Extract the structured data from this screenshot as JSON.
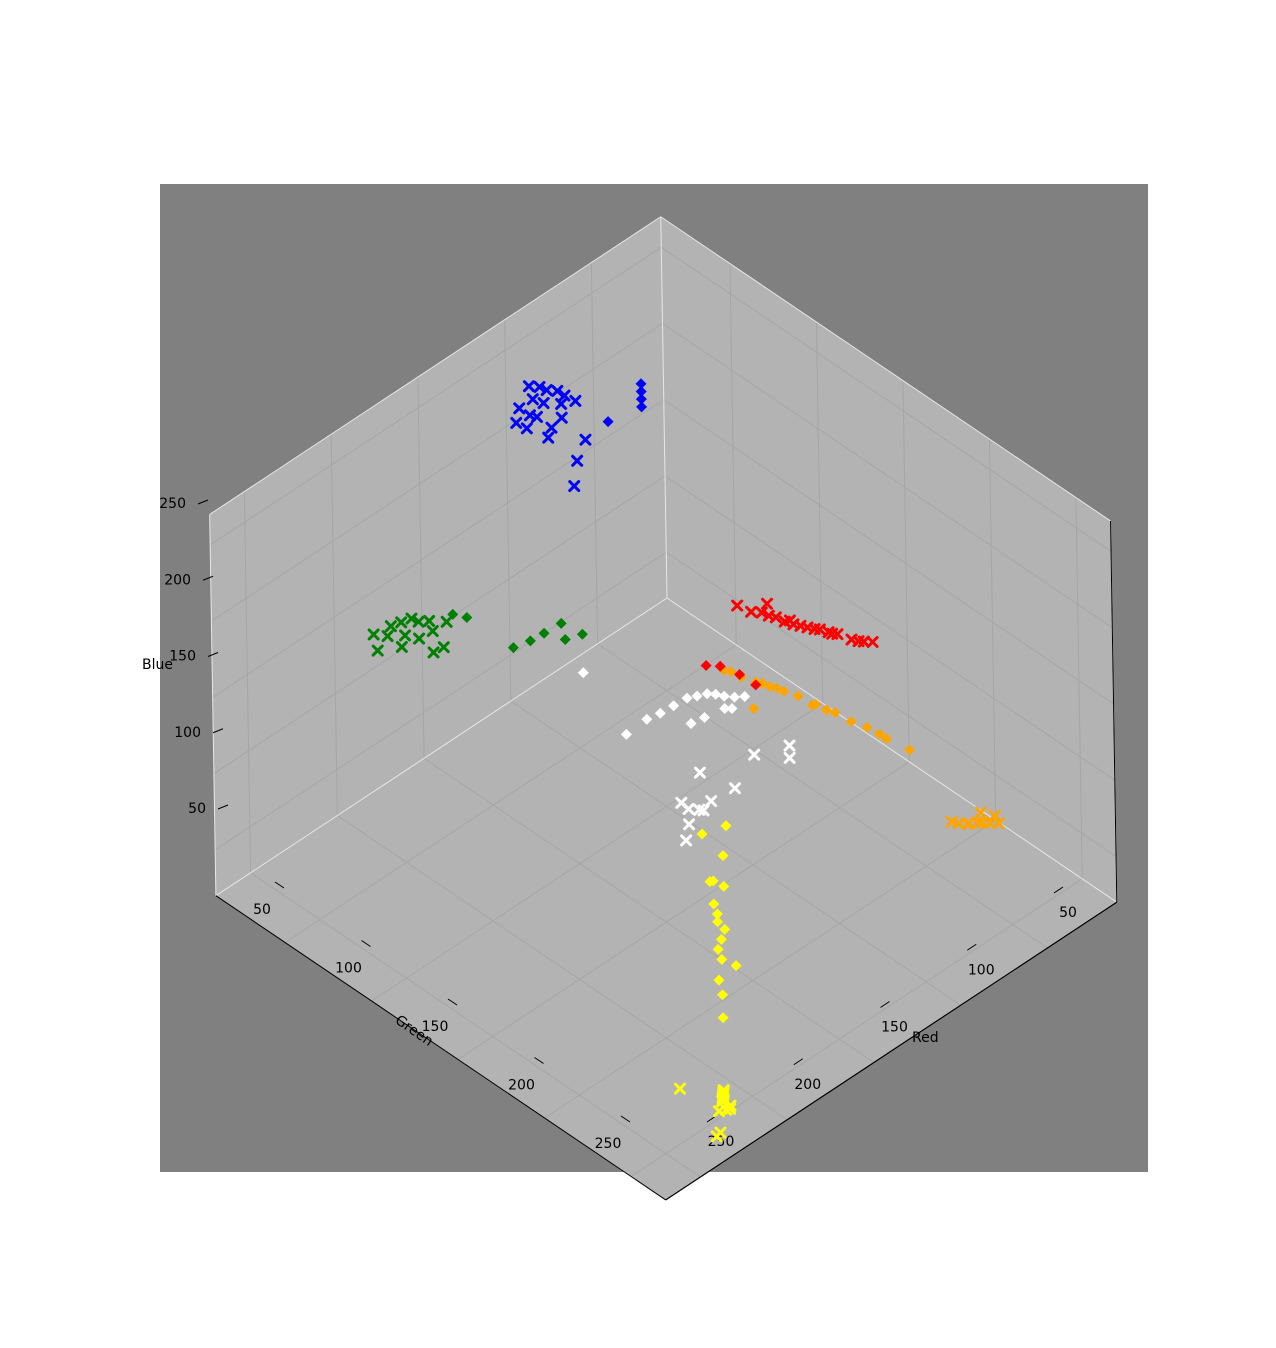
{
  "chart_data": {
    "type": "scatter3d",
    "title": "",
    "xlabel": "Red",
    "ylabel": "Green",
    "zlabel": "Blue",
    "x_ticks": [
      50,
      100,
      150,
      200,
      250
    ],
    "y_ticks": [
      50,
      100,
      150,
      200,
      250
    ],
    "z_ticks": [
      50,
      100,
      150,
      200,
      250
    ],
    "xlim": [
      10,
      270
    ],
    "ylim": [
      10,
      270
    ],
    "zlim": [
      20,
      270
    ],
    "grid": true,
    "legend": "none",
    "colors": {
      "figure_bg": "#ffffff",
      "axes_bg": "#808080",
      "pane": "#b3b3b3",
      "grid": "#a6a6a6"
    },
    "series": [
      {
        "color": "#ff0000",
        "marker": "x",
        "points": [
          [
            35,
            160,
            125
          ],
          [
            38,
            158,
            126
          ],
          [
            42,
            155,
            128
          ],
          [
            45,
            150,
            130
          ],
          [
            48,
            148,
            132
          ],
          [
            50,
            145,
            133
          ],
          [
            54,
            142,
            135
          ],
          [
            58,
            138,
            137
          ],
          [
            60,
            135,
            138
          ],
          [
            62,
            132,
            140
          ],
          [
            58,
            136,
            138
          ],
          [
            40,
            157,
            127
          ],
          [
            47,
            149,
            131
          ],
          [
            56,
            140,
            136
          ],
          [
            64,
            130,
            141
          ],
          [
            66,
            128,
            143
          ],
          [
            70,
            126,
            145
          ],
          [
            72,
            120,
            146
          ],
          [
            60,
            125,
            142
          ],
          [
            52,
            144,
            134
          ]
        ]
      },
      {
        "color": "#ffa500",
        "marker": "x",
        "points": [
          [
            45,
            240,
            75
          ],
          [
            48,
            238,
            76
          ],
          [
            50,
            236,
            76
          ],
          [
            52,
            235,
            77
          ],
          [
            55,
            233,
            77
          ],
          [
            58,
            230,
            77
          ],
          [
            46,
            239,
            80
          ],
          [
            50,
            235,
            82
          ],
          [
            60,
            228,
            78
          ],
          [
            55,
            232,
            76
          ]
        ]
      },
      {
        "color": "#ffa500",
        "marker": "d",
        "points": [
          [
            55,
            200,
            100
          ],
          [
            60,
            192,
            105
          ],
          [
            64,
            185,
            110
          ],
          [
            68,
            180,
            113
          ],
          [
            72,
            175,
            118
          ],
          [
            76,
            168,
            121
          ],
          [
            80,
            162,
            125
          ],
          [
            84,
            158,
            128
          ],
          [
            88,
            154,
            131
          ],
          [
            92,
            150,
            134
          ],
          [
            96,
            146,
            137
          ],
          [
            100,
            140,
            140
          ],
          [
            62,
            190,
            108
          ],
          [
            74,
            172,
            119
          ],
          [
            90,
            152,
            133
          ],
          [
            94,
            150,
            118
          ],
          [
            78,
            168,
            122
          ],
          [
            86,
            156,
            130
          ],
          [
            98,
            142,
            139
          ]
        ]
      },
      {
        "color": "#ff0000",
        "marker": "d",
        "points": [
          [
            100,
            138,
            141
          ],
          [
            105,
            135,
            143
          ],
          [
            96,
            145,
            138
          ],
          [
            92,
            150,
            132
          ]
        ]
      },
      {
        "color": "#0000ff",
        "marker": "x",
        "points": [
          [
            90,
            50,
            240
          ],
          [
            94,
            48,
            245
          ],
          [
            100,
            44,
            250
          ],
          [
            96,
            46,
            248
          ],
          [
            102,
            42,
            252
          ],
          [
            106,
            40,
            254
          ],
          [
            98,
            50,
            244
          ],
          [
            104,
            46,
            246
          ],
          [
            110,
            48,
            243
          ],
          [
            108,
            44,
            250
          ],
          [
            112,
            46,
            244
          ],
          [
            114,
            42,
            247
          ],
          [
            100,
            52,
            238
          ],
          [
            106,
            52,
            236
          ],
          [
            116,
            48,
            240
          ],
          [
            118,
            44,
            242
          ],
          [
            110,
            54,
            234
          ],
          [
            95,
            60,
            226
          ],
          [
            104,
            64,
            222
          ],
          [
            112,
            70,
            216
          ]
        ]
      },
      {
        "color": "#0000ff",
        "marker": "d",
        "points": [
          [
            48,
            44,
            205
          ],
          [
            46,
            42,
            207
          ],
          [
            44,
            40,
            209
          ],
          [
            50,
            46,
            203
          ],
          [
            80,
            58,
            225
          ]
        ]
      },
      {
        "color": "#008000",
        "marker": "x",
        "points": [
          [
            160,
            40,
            140
          ],
          [
            166,
            36,
            142
          ],
          [
            170,
            34,
            143
          ],
          [
            172,
            32,
            145
          ],
          [
            168,
            40,
            140
          ],
          [
            176,
            30,
            144
          ],
          [
            180,
            28,
            143
          ],
          [
            178,
            34,
            140
          ],
          [
            184,
            30,
            141
          ],
          [
            188,
            26,
            142
          ],
          [
            174,
            38,
            138
          ],
          [
            182,
            36,
            137
          ],
          [
            190,
            30,
            136
          ],
          [
            168,
            46,
            134
          ],
          [
            172,
            44,
            132
          ]
        ]
      },
      {
        "color": "#008000",
        "marker": "d",
        "points": [
          [
            126,
            72,
            138
          ],
          [
            122,
            80,
            134
          ],
          [
            134,
            70,
            136
          ],
          [
            140,
            68,
            134
          ],
          [
            146,
            64,
            131
          ],
          [
            128,
            76,
            132
          ],
          [
            156,
            48,
            146
          ],
          [
            160,
            44,
            148
          ]
        ]
      },
      {
        "color": "#ffffff",
        "marker": "d",
        "points": [
          [
            136,
            118,
            108
          ],
          [
            126,
            120,
            112
          ],
          [
            122,
            124,
            116
          ],
          [
            118,
            128,
            121
          ],
          [
            114,
            132,
            126
          ],
          [
            112,
            136,
            129
          ],
          [
            110,
            140,
            132
          ],
          [
            109,
            144,
            134
          ],
          [
            108,
            148,
            135
          ],
          [
            106,
            152,
            136
          ],
          [
            104,
            156,
            138
          ],
          [
            110,
            150,
            130
          ],
          [
            116,
            144,
            124
          ],
          [
            120,
            140,
            120
          ],
          [
            132,
            90,
            124
          ],
          [
            106,
            150,
            127
          ]
        ]
      },
      {
        "color": "#ffffff",
        "marker": "x",
        "points": [
          [
            150,
            168,
            108
          ],
          [
            154,
            172,
            104
          ],
          [
            158,
            174,
            98
          ],
          [
            146,
            170,
            106
          ],
          [
            152,
            166,
            112
          ],
          [
            110,
            166,
            112
          ],
          [
            92,
            168,
            106
          ],
          [
            96,
            172,
            104
          ],
          [
            126,
            150,
            100
          ],
          [
            140,
            166,
            98
          ],
          [
            130,
            160,
            92
          ],
          [
            120,
            164,
            96
          ]
        ]
      },
      {
        "color": "#ffff00",
        "marker": "d",
        "points": [
          [
            130,
            168,
            82
          ],
          [
            140,
            176,
            76
          ],
          [
            150,
            180,
            70
          ],
          [
            156,
            186,
            64
          ],
          [
            158,
            190,
            62
          ],
          [
            160,
            196,
            58
          ],
          [
            164,
            198,
            56
          ],
          [
            168,
            200,
            54
          ],
          [
            170,
            204,
            52
          ],
          [
            166,
            208,
            48
          ],
          [
            176,
            208,
            46
          ],
          [
            180,
            214,
            44
          ],
          [
            186,
            220,
            38
          ],
          [
            148,
            184,
            68
          ],
          [
            138,
            162,
            78
          ],
          [
            150,
            178,
            68
          ],
          [
            160,
            192,
            60
          ]
        ]
      },
      {
        "color": "#ffff00",
        "marker": "x",
        "points": [
          [
            212,
            246,
            30
          ],
          [
            214,
            248,
            32
          ],
          [
            216,
            250,
            34
          ],
          [
            218,
            252,
            36
          ],
          [
            220,
            254,
            38
          ],
          [
            222,
            256,
            40
          ],
          [
            224,
            258,
            42
          ],
          [
            226,
            260,
            44
          ],
          [
            218,
            256,
            32
          ],
          [
            222,
            260,
            36
          ],
          [
            226,
            262,
            40
          ],
          [
            230,
            262,
            42
          ],
          [
            238,
            248,
            52
          ],
          [
            230,
            262,
            28
          ],
          [
            234,
            264,
            30
          ]
        ]
      }
    ]
  }
}
